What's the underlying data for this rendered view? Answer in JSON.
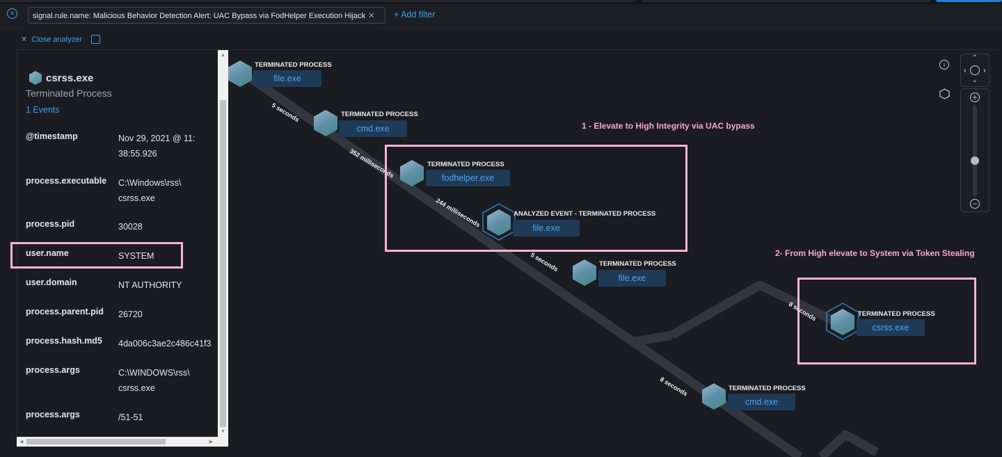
{
  "filter_bar": {
    "filter_pill": "signal.rule.name: Malicious Behavior Detection Alert: UAC Bypass via FodHelper Execution Hijack",
    "add_filter": "+ Add filter"
  },
  "analyzer": {
    "close_label": "Close analyzer"
  },
  "panel": {
    "process_name": "csrss.exe",
    "process_state": "Terminated Process",
    "events_link": "1 Events",
    "fields": [
      {
        "key": "@timestamp",
        "value": "Nov 29, 2021 @ 11:\n38:55.926"
      },
      {
        "key": "process.executable",
        "value": "C:\\Windows\\rss\\\ncsrss.exe"
      },
      {
        "key": "process.pid",
        "value": "30028"
      },
      {
        "key": "user.name",
        "value": "SYSTEM"
      },
      {
        "key": "user.domain",
        "value": "NT AUTHORITY"
      },
      {
        "key": "process.parent.pid",
        "value": "26720"
      },
      {
        "key": "process.hash.md5",
        "value": "4da006c3ae2c486c41f3"
      },
      {
        "key": "process.args",
        "value": "C:\\WINDOWS\\rss\\\ncsrss.exe"
      },
      {
        "key": "process.args",
        "value": "/51-51"
      }
    ]
  },
  "graph": {
    "nodes": [
      {
        "title": "TERMINATED PROCESS",
        "name": "file.exe"
      },
      {
        "title": "TERMINATED PROCESS",
        "name": "cmd.exe"
      },
      {
        "title": "TERMINATED PROCESS",
        "name": "fodhelper.exe"
      },
      {
        "title": "ANALYZED EVENT - TERMINATED PROCESS",
        "name": "file.exe"
      },
      {
        "title": "TERMINATED PROCESS",
        "name": "file.exe"
      },
      {
        "title": "TERMINATED PROCESS",
        "name": "csrss.exe"
      },
      {
        "title": "TERMINATED PROCESS",
        "name": "cmd.exe"
      }
    ],
    "edges": [
      "5 seconds",
      "352 milliseconds",
      "244 milliseconds",
      "5 seconds",
      "8 seconds",
      "8 seconds"
    ]
  },
  "annotations": {
    "step1": "1 - Elevate to High Integrity via UAC bypass",
    "step2": "2- From High elevate to System via Token Stealing",
    "color": "#f6b6cf"
  },
  "zoom_control": {
    "zoom_level": 0.6
  }
}
